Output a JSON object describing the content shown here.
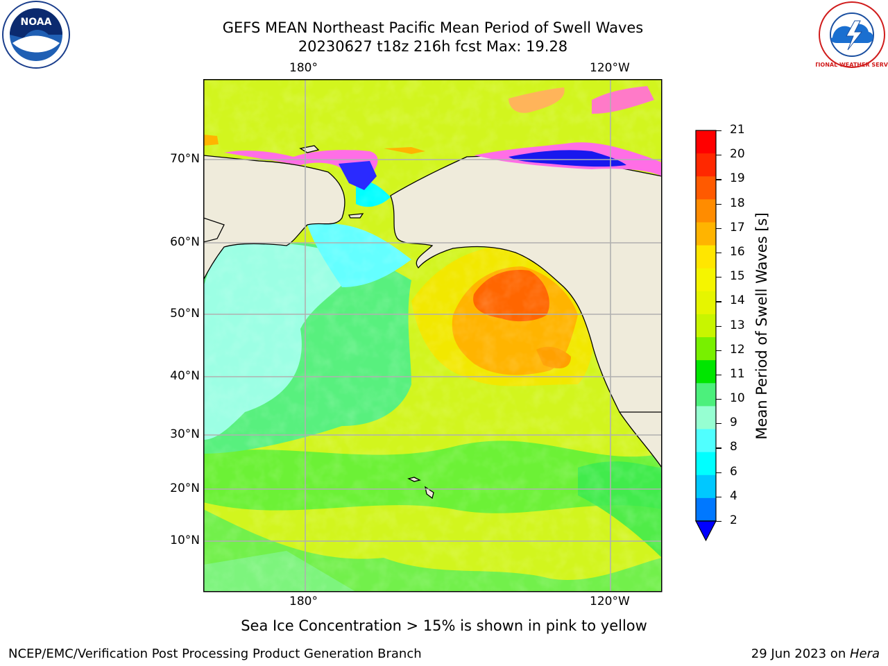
{
  "title": {
    "line1": "GEFS MEAN Northeast Pacific Mean Period of Swell Waves",
    "line2": "20230627 t18z 216h fcst   Max: 19.28"
  },
  "map": {
    "lon_labels_top": [
      "180°",
      "120°W"
    ],
    "lon_labels_bottom": [
      "180°",
      "120°W"
    ],
    "lat_labels": [
      "70°N",
      "60°N",
      "50°N",
      "40°N",
      "30°N",
      "20°N",
      "10°N"
    ],
    "land_color": "#efebdb",
    "grid_color": "#b0b0b0"
  },
  "colorbar": {
    "label": "Mean Period of Swell Waves [s]",
    "ticks": [
      "21",
      "20",
      "19",
      "18",
      "17",
      "16",
      "15",
      "14",
      "13",
      "12",
      "11",
      "10",
      "9",
      "8",
      "6",
      "4",
      "2"
    ],
    "colors": [
      "#ff0000",
      "#ff2800",
      "#ff5a00",
      "#ff8c00",
      "#ffb400",
      "#ffe600",
      "#f5f500",
      "#e6f500",
      "#c8f500",
      "#78f000",
      "#00e600",
      "#4cf07c",
      "#96ffd2",
      "#50ffff",
      "#00ffff",
      "#00c8ff",
      "#0078ff"
    ],
    "extend_color": "#0000ff"
  },
  "note": "Sea Ice Concentration > 15% is shown in pink to yellow",
  "footer": {
    "left": "NCEP/EMC/Verification Post Processing Product Generation Branch",
    "right_date": "29 Jun 2023 on ",
    "right_host": "Hera"
  },
  "logos": {
    "left_text": "NOAA",
    "right_text": "NATIONAL WEATHER SERVICE"
  }
}
